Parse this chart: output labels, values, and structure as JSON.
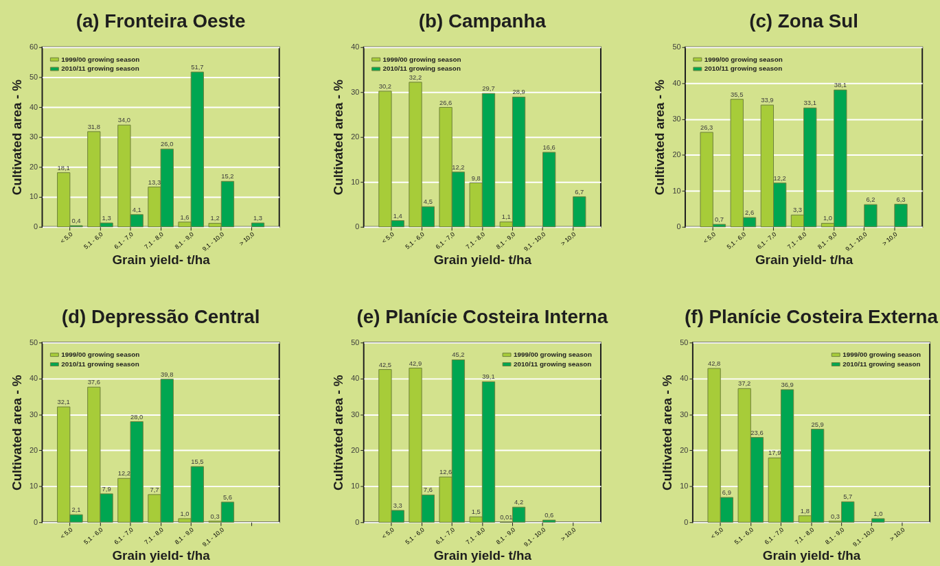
{
  "chart_data": [
    {
      "type": "bar",
      "title": "(a) Fronteira Oeste",
      "xlabel": "Grain yield- t/ha",
      "ylabel": "Cultivated area - %",
      "categories": [
        "< 5,0",
        "5,1 - 6,0",
        "6,1 - 7,0",
        "7,1 - 8,0",
        "8,1 - 9,0",
        "9,1 - 10,0",
        "> 10,0"
      ],
      "series": [
        {
          "name": "1999/00 growing season",
          "color": "#a7cc39",
          "values": [
            18.1,
            31.8,
            34.0,
            13.3,
            1.6,
            1.2,
            null
          ],
          "value_labels": [
            "18,1",
            "31,8",
            "34,0",
            "13,3",
            "1,6",
            "1,2",
            null
          ]
        },
        {
          "name": "2010/11 growing season",
          "color": "#00a651",
          "values": [
            0.4,
            1.3,
            4.1,
            26.0,
            51.7,
            15.2,
            1.3
          ],
          "value_labels": [
            "0,4",
            "1,3",
            "4,1",
            "26,0",
            "51,7",
            "15,2",
            "1,3"
          ]
        }
      ],
      "ylim": [
        0,
        60
      ],
      "yticks": [
        0,
        10,
        20,
        30,
        40,
        50,
        60
      ],
      "grid": "y",
      "legend": "top left"
    },
    {
      "type": "bar",
      "title": "(b) Campanha",
      "xlabel": "Grain yield- t/ha",
      "ylabel": "Cultivated area - %",
      "categories": [
        "< 5,0",
        "5,1 - 6,0",
        "6,1 - 7,0",
        "7,1 - 8,0",
        "8,1 - 9,0",
        "9,1 - 10,0",
        "> 10,0"
      ],
      "series": [
        {
          "name": "1999/00 growing season",
          "color": "#a7cc39",
          "values": [
            30.2,
            32.2,
            26.6,
            9.8,
            1.1,
            null,
            null
          ],
          "value_labels": [
            "30,2",
            "32,2",
            "26,6",
            "9,8",
            "1,1",
            null,
            null
          ]
        },
        {
          "name": "2010/11 growing season",
          "color": "#00a651",
          "values": [
            1.4,
            4.5,
            12.2,
            29.7,
            28.9,
            16.6,
            6.7
          ],
          "value_labels": [
            "1,4",
            "4,5",
            "12,2",
            "29,7",
            "28,9",
            "16,6",
            "6,7"
          ]
        }
      ],
      "ylim": [
        0,
        40
      ],
      "yticks": [
        0,
        10,
        20,
        30,
        40
      ],
      "grid": "y",
      "legend": "top left"
    },
    {
      "type": "bar",
      "title": "(c) Zona Sul",
      "xlabel": "Grain yield- t/ha",
      "ylabel": "Cultivated area - %",
      "categories": [
        "< 5,0",
        "5,1 - 6,0",
        "6,1 - 7,0",
        "7,1 - 8,0",
        "8,1 - 9,0",
        "9,1 - 10,0",
        "> 10,0"
      ],
      "series": [
        {
          "name": "1999/00 growing season",
          "color": "#a7cc39",
          "values": [
            26.3,
            35.5,
            33.9,
            3.3,
            1.0,
            null,
            null
          ],
          "value_labels": [
            "26,3",
            "35,5",
            "33,9",
            "3,3",
            "1,0",
            null,
            null
          ]
        },
        {
          "name": "2010/11 growing season",
          "color": "#00a651",
          "values": [
            0.7,
            2.6,
            12.2,
            33.1,
            38.1,
            6.2,
            6.3
          ],
          "value_labels": [
            "0,7",
            "2,6",
            "12,2",
            "33,1",
            "38,1",
            "6,2",
            "6,3"
          ]
        }
      ],
      "ylim": [
        0,
        50
      ],
      "yticks": [
        0,
        10,
        20,
        30,
        40,
        50
      ],
      "grid": "y",
      "legend": "top left"
    },
    {
      "type": "bar",
      "title": "(d) Depressão Central",
      "xlabel": "Grain yield- t/ha",
      "ylabel": "Cultivated area - %",
      "categories": [
        "< 5,0",
        "5,1 - 6,0",
        "6,1 - 7,0",
        "7,1 - 8,0",
        "8,1 - 9,0",
        "9,1 - 10,0",
        null
      ],
      "series": [
        {
          "name": "1999/00 growing season",
          "color": "#a7cc39",
          "values": [
            32.1,
            37.6,
            12.2,
            7.7,
            1.0,
            0.3,
            null
          ],
          "value_labels": [
            "32,1",
            "37,6",
            "12,2",
            "7,7",
            "1,0",
            "0,3",
            null
          ]
        },
        {
          "name": "2010/11 growing season",
          "color": "#00a651",
          "values": [
            2.1,
            7.9,
            28.0,
            39.8,
            15.5,
            5.6,
            null
          ],
          "value_labels": [
            "2,1",
            "7,9",
            "28,0",
            "39,8",
            "15,5",
            "5,6",
            null
          ]
        }
      ],
      "ylim": [
        0,
        50
      ],
      "yticks": [
        0,
        10,
        20,
        30,
        40,
        50
      ],
      "grid": "y",
      "legend": "top left"
    },
    {
      "type": "bar",
      "title": "(e) Planície Costeira Interna",
      "xlabel": "Grain yield- t/ha",
      "ylabel": "Cultivated area - %",
      "categories": [
        "< 5,0",
        "5,1 - 6,0",
        "6,1 - 7,0",
        "7,1 - 8,0",
        "8,1 - 9,0",
        "9,1 - 10,0",
        "> 10,0"
      ],
      "series": [
        {
          "name": "1999/00 growing season",
          "color": "#a7cc39",
          "values": [
            42.5,
            42.9,
            12.6,
            1.5,
            0.01,
            null,
            null
          ],
          "value_labels": [
            "42,5",
            "42,9",
            "12,6",
            "1,5",
            "0,01",
            null,
            null
          ]
        },
        {
          "name": "2010/11 growing season",
          "color": "#00a651",
          "values": [
            3.3,
            7.6,
            45.2,
            39.1,
            4.2,
            0.6,
            null
          ],
          "value_labels": [
            "3,3",
            "7,6",
            "45,2",
            "39,1",
            "4,2",
            "0,6",
            null
          ]
        }
      ],
      "ylim": [
        0,
        50
      ],
      "yticks": [
        0,
        10,
        20,
        30,
        40,
        50
      ],
      "grid": "y",
      "legend": "top right"
    },
    {
      "type": "bar",
      "title": "(f) Planície Costeira Externa",
      "xlabel": "Grain yield- t/ha",
      "ylabel": "Cultivated area - %",
      "categories": [
        "< 5,0",
        "5,1 - 6,0",
        "6,1 - 7,0",
        "7,1 - 8,0",
        "8,1 - 9,0",
        "9,1 - 10,0",
        "> 10,0"
      ],
      "series": [
        {
          "name": "1999/00 growing season",
          "color": "#a7cc39",
          "values": [
            42.8,
            37.2,
            17.9,
            1.8,
            0.3,
            null,
            null
          ],
          "value_labels": [
            "42,8",
            "37,2",
            "17,9",
            "1,8",
            "0,3",
            null,
            null
          ]
        },
        {
          "name": "2010/11 growing season",
          "color": "#00a651",
          "values": [
            6.9,
            23.6,
            36.9,
            25.9,
            5.7,
            1.0,
            null
          ],
          "value_labels": [
            "6,9",
            "23,6",
            "36,9",
            "25,9",
            "5,7",
            "1,0",
            null
          ]
        }
      ],
      "ylim": [
        0,
        50
      ],
      "yticks": [
        0,
        10,
        20,
        30,
        40,
        50
      ],
      "grid": "y",
      "legend": "top right"
    }
  ]
}
